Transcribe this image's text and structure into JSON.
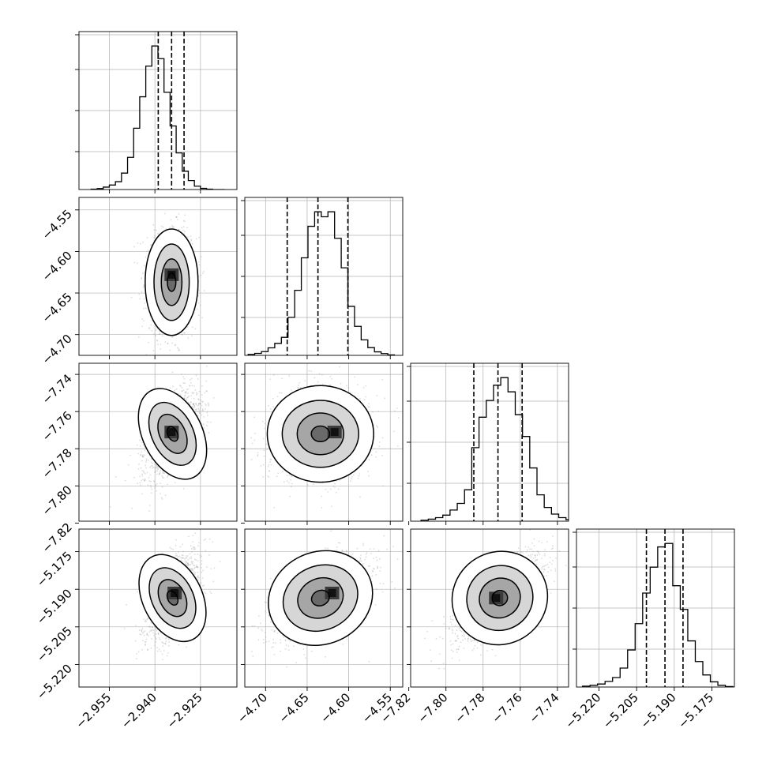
{
  "figure": {
    "style": {
      "grid": true,
      "grid_color": "#b0b0b0",
      "frame_color": "#000000",
      "hist_color": "#000000",
      "scatter_color": "#9a9a9a",
      "density_colormap": [
        "#ffffff",
        "#000000"
      ],
      "quantile_line_style": "dashed"
    }
  },
  "chart_data": [
    {
      "type": "histogram",
      "panel": "hist-param-1",
      "xlim": [
        -2.965,
        -2.913
      ],
      "xticks": [
        -2.955,
        -2.94,
        -2.925
      ],
      "xtick_labels": [
        "−2.955",
        "−2.940",
        "−2.925"
      ],
      "grid": true,
      "quantiles": [
        -2.9389,
        -2.9345,
        -2.9304
      ],
      "bin_edges": [
        -2.961,
        -2.959,
        -2.957,
        -2.955,
        -2.953,
        -2.951,
        -2.949,
        -2.947,
        -2.945,
        -2.943,
        -2.941,
        -2.939,
        -2.937,
        -2.935,
        -2.933,
        -2.931,
        -2.929,
        -2.927,
        -2.925,
        -2.923,
        -2.921,
        -2.919,
        -2.917
      ],
      "counts": [
        2,
        5,
        13,
        24,
        42,
        88,
        172,
        328,
        496,
        660,
        768,
        700,
        520,
        340,
        196,
        98,
        48,
        18,
        6,
        2,
        0,
        0
      ]
    },
    {
      "type": "histogram",
      "panel": "hist-param-2",
      "xlim": [
        -4.725,
        -4.535
      ],
      "xticks": [
        -4.7,
        -4.65,
        -4.6,
        -4.55
      ],
      "xtick_labels": [
        "−4.70",
        "−4.65",
        "−4.60",
        "−4.55"
      ],
      "grid": true,
      "quantiles": [
        -4.674,
        -4.637,
        -4.601
      ],
      "bin_edges": [
        -4.721,
        -4.713,
        -4.705,
        -4.697,
        -4.689,
        -4.681,
        -4.673,
        -4.665,
        -4.657,
        -4.649,
        -4.641,
        -4.633,
        -4.625,
        -4.617,
        -4.609,
        -4.601,
        -4.593,
        -4.585,
        -4.577,
        -4.569,
        -4.561,
        -4.553,
        -4.545
      ],
      "counts": [
        4,
        8,
        15,
        30,
        48,
        72,
        152,
        260,
        390,
        516,
        574,
        554,
        574,
        468,
        350,
        196,
        116,
        62,
        31,
        14,
        7,
        2
      ]
    },
    {
      "type": "histogram",
      "panel": "hist-param-3",
      "xlim": [
        -7.819,
        -7.734
      ],
      "xticks": [
        -7.82,
        -7.8,
        -7.78,
        -7.76,
        -7.74
      ],
      "xtick_labels": [
        "−7.82",
        "−7.80",
        "−7.78",
        "−7.76",
        "−7.74"
      ],
      "grid": true,
      "quantiles": [
        -7.785,
        -7.772,
        -7.759
      ],
      "bin_edges": [
        -7.8134,
        -7.8095,
        -7.8056,
        -7.8017,
        -7.7978,
        -7.7939,
        -7.79,
        -7.7861,
        -7.7822,
        -7.7783,
        -7.7744,
        -7.7705,
        -7.7666,
        -7.7627,
        -7.7588,
        -7.7549,
        -7.751,
        -7.7471,
        -7.7432,
        -7.7393,
        -7.7354,
        -7.7315
      ],
      "counts": [
        4,
        8,
        14,
        24,
        44,
        70,
        124,
        290,
        410,
        476,
        536,
        566,
        510,
        420,
        334,
        210,
        104,
        54,
        28,
        14,
        6
      ]
    },
    {
      "type": "histogram",
      "panel": "hist-param-4",
      "xlim": [
        -5.229,
        -5.166
      ],
      "xticks": [
        -5.22,
        -5.205,
        -5.19,
        -5.175
      ],
      "xtick_labels": [
        "−5.220",
        "−5.205",
        "−5.190",
        "−5.175"
      ],
      "grid": true,
      "quantiles": [
        -5.2011,
        -5.1937,
        -5.1865
      ],
      "bin_edges": [
        -5.2266,
        -5.2236,
        -5.2206,
        -5.2176,
        -5.2146,
        -5.2116,
        -5.2086,
        -5.2056,
        -5.2026,
        -5.1996,
        -5.1966,
        -5.1936,
        -5.1906,
        -5.1876,
        -5.1846,
        -5.1816,
        -5.1786,
        -5.1756,
        -5.1726,
        -5.1696,
        -5.1666
      ],
      "counts": [
        4,
        8,
        14,
        26,
        44,
        88,
        172,
        294,
        436,
        556,
        650,
        666,
        470,
        360,
        214,
        118,
        56,
        24,
        8,
        2
      ]
    },
    {
      "type": "scatter-density",
      "panel": "corner-param-1-vs-2",
      "xlim": [
        -2.965,
        -2.913
      ],
      "ylim": [
        -4.725,
        -4.535
      ],
      "yticks": [
        -4.7,
        -4.65,
        -4.6,
        -4.55
      ],
      "ytick_labels": [
        "−4.70",
        "−4.65",
        "−4.60",
        "−4.55"
      ],
      "grid": true,
      "center": [
        -2.9345,
        -4.637
      ],
      "mode": [
        -2.9345,
        -4.628
      ],
      "contour_radii": [
        [
          0.0087,
          0.064
        ],
        [
          0.0058,
          0.046
        ],
        [
          0.0034,
          0.028
        ],
        [
          0.0014,
          0.011
        ]
      ],
      "correlation": 0.05
    },
    {
      "type": "scatter-density",
      "panel": "corner-param-1-vs-3",
      "xlim": [
        -2.965,
        -2.913
      ],
      "ylim": [
        -7.819,
        -7.734
      ],
      "yticks": [
        -7.82,
        -7.8,
        -7.78,
        -7.76,
        -7.74
      ],
      "ytick_labels": [
        "−7.82",
        "−7.80",
        "−7.78",
        "−7.76",
        "−7.74"
      ],
      "grid": true,
      "center": [
        -2.9342,
        -7.772
      ],
      "mode": [
        -2.9345,
        -7.771
      ],
      "contour_radii": [
        [
          0.0098,
          0.026
        ],
        [
          0.0068,
          0.018
        ],
        [
          0.0042,
          0.0112
        ],
        [
          0.0016,
          0.0042
        ]
      ],
      "correlation": 0.55
    },
    {
      "type": "scatter-density",
      "panel": "corner-param-1-vs-4",
      "xlim": [
        -2.965,
        -2.913
      ],
      "ylim": [
        -5.229,
        -5.166
      ],
      "yticks": [
        -5.22,
        -5.205,
        -5.19,
        -5.175
      ],
      "ytick_labels": [
        "−5.220",
        "−5.205",
        "−5.190",
        "−5.175"
      ],
      "grid": true,
      "center": [
        -2.9342,
        -5.1935
      ],
      "mode": [
        -2.9335,
        -5.1915
      ],
      "contour_radii": [
        [
          0.0098,
          0.0184
        ],
        [
          0.0068,
          0.0128
        ],
        [
          0.0042,
          0.0078
        ],
        [
          0.0016,
          0.003
        ]
      ],
      "correlation": 0.55
    },
    {
      "type": "scatter-density",
      "panel": "corner-param-2-vs-3",
      "xlim": [
        -4.725,
        -4.535
      ],
      "ylim": [
        -7.819,
        -7.734
      ],
      "grid": true,
      "center": [
        -4.634,
        -7.772
      ],
      "mode": [
        -4.617,
        -7.771
      ],
      "contour_radii": [
        [
          0.064,
          0.026
        ],
        [
          0.046,
          0.018
        ],
        [
          0.028,
          0.0112
        ],
        [
          0.011,
          0.0042
        ]
      ],
      "correlation": 0.05
    },
    {
      "type": "scatter-density",
      "panel": "corner-param-2-vs-4",
      "xlim": [
        -4.725,
        -4.535
      ],
      "ylim": [
        -5.229,
        -5.166
      ],
      "grid": true,
      "center": [
        -4.634,
        -5.1935
      ],
      "mode": [
        -4.62,
        -5.1915
      ],
      "contour_radii": [
        [
          0.064,
          0.0184
        ],
        [
          0.046,
          0.0128
        ],
        [
          0.028,
          0.0078
        ],
        [
          0.011,
          0.003
        ]
      ],
      "correlation": 0.5
    },
    {
      "type": "scatter-density",
      "panel": "corner-param-3-vs-4",
      "xlim": [
        -7.819,
        -7.734
      ],
      "ylim": [
        -5.229,
        -5.166
      ],
      "grid": true,
      "center": [
        -7.771,
        -5.1935
      ],
      "mode": [
        -7.773,
        -5.1935
      ],
      "contour_radii": [
        [
          0.026,
          0.0184
        ],
        [
          0.018,
          0.0128
        ],
        [
          0.0112,
          0.0078
        ],
        [
          0.0042,
          0.003
        ]
      ],
      "correlation": 0.7
    }
  ]
}
